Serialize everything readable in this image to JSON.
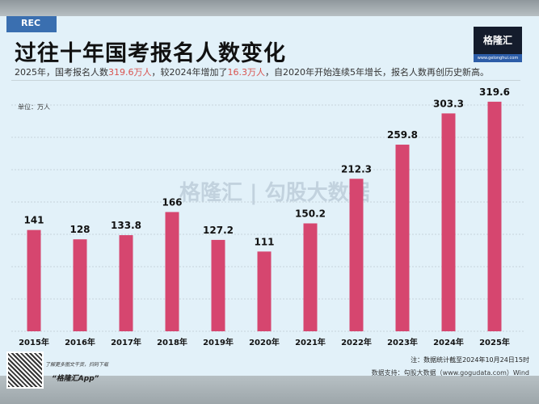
{
  "header": {
    "rec_label": "REC",
    "title": "过往十年国考报名人数变化",
    "subtitle_parts": [
      "2025年，国考报名人数",
      "319.6万人",
      "，较2024年增加了",
      "16.3万人",
      "，自2020年开始连续5年增长，报名人数再创历史新高。"
    ],
    "logo_text": "格隆汇",
    "logo_url": "www.gelonghui.com",
    "unit": "单位：万人"
  },
  "watermark": "格隆汇 | 勾股大数据",
  "footer": {
    "qr_caption": "了解更多图文干货，扫码下载",
    "app_name": "“格隆汇App”",
    "note": "注：数据统计截至2024年10月24日15时",
    "source": "数据支持：勾股大数据（www.gogudata.com）Wind"
  },
  "colors": {
    "bar": "#d6466f",
    "highlight": "#d9534f",
    "panel": "#e2f1f9"
  },
  "chart_data": {
    "type": "bar",
    "title": "过往十年国考报名人数变化",
    "ylabel": "单位：万人",
    "categories": [
      "2015年",
      "2016年",
      "2017年",
      "2018年",
      "2019年",
      "2020年",
      "2021年",
      "2022年",
      "2023年",
      "2024年",
      "2025年"
    ],
    "values": [
      141,
      128,
      133.8,
      166,
      127.2,
      111,
      150.2,
      212.3,
      259.8,
      303.3,
      319.6
    ],
    "value_labels": [
      "141",
      "128",
      "133.8",
      "166",
      "127.2",
      "111",
      "150.2",
      "212.3",
      "259.8",
      "303.3",
      "319.6"
    ],
    "ylim": [
      0,
      330
    ],
    "grid": true,
    "legend": "none"
  }
}
